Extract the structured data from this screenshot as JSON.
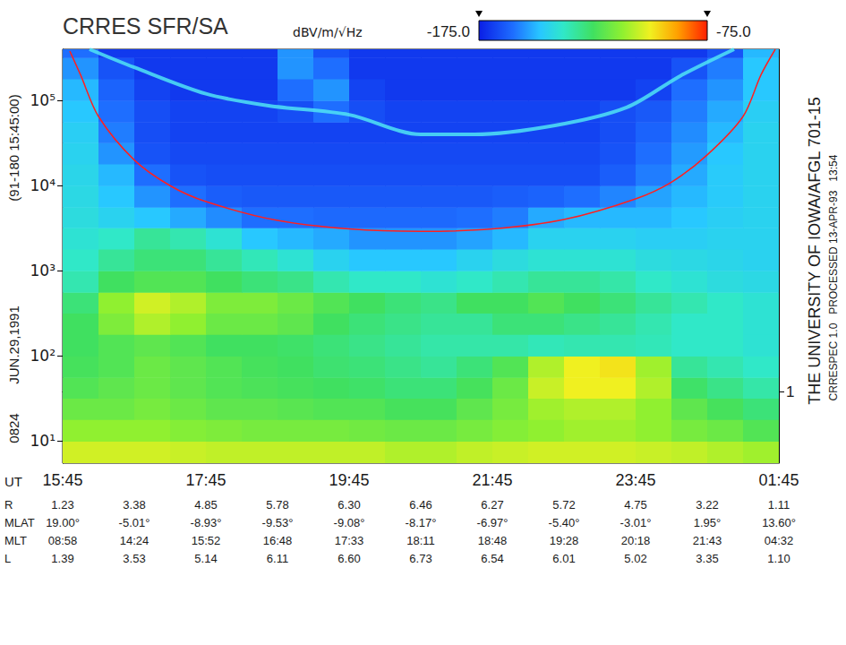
{
  "chart_data": {
    "type": "spectrogram",
    "title": "CRRES SFR/SA",
    "xlabel": "UT",
    "log": "y",
    "grid": false,
    "xlim": [
      15.75,
      25.75
    ],
    "xticks": [
      {
        "value": 15.75,
        "label": "15:45"
      },
      {
        "value": 17.75,
        "label": "17:45"
      },
      {
        "value": 19.75,
        "label": "19:45"
      },
      {
        "value": 21.75,
        "label": "21:45"
      },
      {
        "value": 23.75,
        "label": "23:45"
      },
      {
        "value": 25.75,
        "label": "01:45"
      }
    ],
    "ylim": [
      5.5,
      400000
    ],
    "yticks": [
      {
        "value": 10,
        "label": "10¹"
      },
      {
        "value": 100,
        "label": "10²"
      },
      {
        "value": 1000,
        "label": "10³"
      },
      {
        "value": 10000,
        "label": "10⁴"
      },
      {
        "value": 100000,
        "label": "10⁵"
      }
    ],
    "y2lim": [
      0.1,
      60000
    ],
    "y2ticks": [
      1
    ],
    "colorbar": {
      "range": [
        -175,
        -75
      ],
      "ticks": [
        {
          "value": -175,
          "label": "-175.0"
        },
        {
          "value": -75,
          "label": "-75.0"
        }
      ],
      "label": "dBV/m/√Hz"
    },
    "time_edges": [
      15.75,
      16.25,
      16.75,
      17.25,
      17.75,
      18.25,
      18.75,
      19.25,
      19.75,
      20.25,
      20.75,
      21.25,
      21.75,
      22.25,
      22.75,
      23.25,
      23.75,
      24.25,
      24.75,
      25.25,
      25.75
    ],
    "freq_edges": [
      5.5,
      10,
      18,
      32,
      56,
      100,
      180,
      320,
      560,
      1000,
      1800,
      3200,
      5600,
      10000,
      18000,
      32000,
      56000,
      100000,
      180000,
      320000,
      400000
    ],
    "cells": [
      [
        -104,
        -104,
        -104,
        -105,
        -106,
        -106,
        -106,
        -106,
        -106,
        -108,
        -108,
        -106,
        -105,
        -104,
        -104,
        -104,
        -105,
        -106,
        -108,
        -110
      ],
      [
        -112,
        -112,
        -112,
        -114,
        -115,
        -116,
        -116,
        -116,
        -117,
        -118,
        -118,
        -116,
        -114,
        -112,
        -110,
        -110,
        -112,
        -116,
        -118,
        -122
      ],
      [
        -118,
        -118,
        -116,
        -118,
        -120,
        -120,
        -121,
        -122,
        -122,
        -124,
        -124,
        -120,
        -116,
        -110,
        -108,
        -108,
        -112,
        -120,
        -124,
        -128
      ],
      [
        -122,
        -120,
        -118,
        -120,
        -122,
        -123,
        -124,
        -125,
        -126,
        -128,
        -128,
        -124,
        -118,
        -105,
        -100,
        -100,
        -108,
        -126,
        -130,
        -134
      ],
      [
        -124,
        -122,
        -118,
        -120,
        -122,
        -124,
        -125,
        -127,
        -128,
        -130,
        -132,
        -128,
        -122,
        -108,
        -100,
        -98,
        -110,
        -132,
        -135,
        -138
      ],
      [
        -125,
        -122,
        -120,
        -122,
        -125,
        -125,
        -126,
        -128,
        -130,
        -132,
        -134,
        -134,
        -134,
        -136,
        -135,
        -135,
        -136,
        -138,
        -138,
        -140
      ],
      [
        -125,
        -115,
        -108,
        -112,
        -118,
        -118,
        -120,
        -125,
        -128,
        -130,
        -132,
        -132,
        -128,
        -128,
        -130,
        -132,
        -135,
        -138,
        -138,
        -140
      ],
      [
        -128,
        -112,
        -104,
        -108,
        -115,
        -115,
        -118,
        -122,
        -125,
        -128,
        -130,
        -125,
        -125,
        -122,
        -125,
        -128,
        -132,
        -135,
        -138,
        -140
      ],
      [
        -135,
        -125,
        -122,
        -122,
        -125,
        -128,
        -130,
        -135,
        -138,
        -138,
        -140,
        -138,
        -135,
        -132,
        -132,
        -134,
        -138,
        -140,
        -142,
        -143
      ],
      [
        -138,
        -132,
        -128,
        -128,
        -132,
        -136,
        -140,
        -145,
        -148,
        -148,
        -148,
        -145,
        -142,
        -140,
        -140,
        -140,
        -142,
        -143,
        -144,
        -145
      ],
      [
        -140,
        -138,
        -132,
        -135,
        -140,
        -148,
        -150,
        -152,
        -155,
        -155,
        -155,
        -153,
        -150,
        -145,
        -145,
        -145,
        -146,
        -146,
        -145,
        -145
      ],
      [
        -142,
        -145,
        -148,
        -152,
        -156,
        -160,
        -160,
        -161,
        -161,
        -161,
        -161,
        -160,
        -158,
        -152,
        -150,
        -150,
        -150,
        -148,
        -146,
        -145
      ],
      [
        -143,
        -148,
        -155,
        -160,
        -163,
        -164,
        -164,
        -164,
        -164,
        -164,
        -164,
        -164,
        -163,
        -162,
        -160,
        -157,
        -153,
        -150,
        -147,
        -145
      ],
      [
        -144,
        -150,
        -160,
        -165,
        -166,
        -166,
        -166,
        -166,
        -166,
        -166,
        -166,
        -166,
        -166,
        -166,
        -166,
        -163,
        -158,
        -152,
        -147,
        -145
      ],
      [
        -145,
        -155,
        -165,
        -167,
        -167,
        -167,
        -167,
        -167,
        -167,
        -167,
        -167,
        -167,
        -167,
        -167,
        -167,
        -165,
        -160,
        -154,
        -148,
        -145
      ],
      [
        -146,
        -158,
        -166,
        -168,
        -168,
        -168,
        -168,
        -168,
        -168,
        -168,
        -168,
        -168,
        -168,
        -168,
        -168,
        -166,
        -162,
        -156,
        -150,
        -145
      ],
      [
        -148,
        -160,
        -166,
        -168,
        -168,
        -168,
        -166,
        -160,
        -166,
        -168,
        -168,
        -168,
        -168,
        -168,
        -168,
        -166,
        -164,
        -158,
        -152,
        -146
      ],
      [
        -150,
        -162,
        -168,
        -170,
        -170,
        -170,
        -160,
        -155,
        -168,
        -170,
        -170,
        -170,
        -170,
        -170,
        -170,
        -170,
        -168,
        -160,
        -155,
        -148
      ],
      [
        -155,
        -165,
        -170,
        -170,
        -170,
        -170,
        -155,
        -160,
        -170,
        -170,
        -170,
        -170,
        -170,
        -170,
        -170,
        -170,
        -170,
        -165,
        -158,
        -148
      ],
      [
        -160,
        -170,
        -170,
        -170,
        -170,
        -170,
        -155,
        -165,
        -170,
        -170,
        -170,
        -170,
        -170,
        -170,
        -170,
        -170,
        -170,
        -170,
        -165,
        -150
      ]
    ],
    "lines": [
      {
        "color": "#50e4f4",
        "line_style": "thick",
        "x": [
          16.125,
          16.75,
          17.75,
          18.625,
          19.75,
          20.75,
          21.5,
          22.625,
          23.625,
          24.375,
          25.125
        ],
        "values": [
          400000,
          245000,
          120000,
          87000,
          68000,
          40000,
          40000,
          51000,
          83000,
          195000,
          400000
        ]
      },
      {
        "color": "#ff2020",
        "line_style": "thin",
        "x": [
          15.85,
          16.0,
          16.25,
          16.75,
          17.25,
          17.75,
          18.75,
          19.75,
          20.75,
          21.75,
          22.75,
          23.75,
          24.25,
          24.75,
          25.25,
          25.5,
          25.7
        ],
        "values": [
          380000,
          200000,
          65000,
          20000,
          10000,
          6500,
          3900,
          3100,
          2900,
          3100,
          4000,
          7000,
          11000,
          23000,
          65000,
          200000,
          400000
        ]
      }
    ],
    "left_labels": [
      "0824",
      "JUN.29,1991",
      "(91-180 15:45:00)"
    ],
    "right_labels": [
      "THE UNIVERSITY OF IOWA/AFGL 701-15",
      "CRRESPEC 1.0   PROCESSED 13-APR-93   13:54"
    ],
    "ephemeris": {
      "x": [
        15.75,
        16.75,
        17.75,
        18.75,
        19.75,
        20.75,
        21.75,
        22.75,
        23.75,
        24.75,
        25.75
      ],
      "rows": [
        {
          "label": "R",
          "values": [
            "1.23",
            "3.38",
            "4.85",
            "5.78",
            "6.30",
            "6.46",
            "6.27",
            "5.72",
            "4.75",
            "3.22",
            "1.11"
          ]
        },
        {
          "label": "MLAT",
          "values": [
            "19.00°",
            "-5.01°",
            "-8.93°",
            "-9.53°",
            "-9.08°",
            "-8.17°",
            "-6.97°",
            "-5.40°",
            "-3.01°",
            "1.95°",
            "13.60°"
          ]
        },
        {
          "label": "MLT",
          "values": [
            "08:58",
            "14:24",
            "15:52",
            "16:48",
            "17:33",
            "18:11",
            "18:48",
            "19:28",
            "20:18",
            "21:43",
            "04:32"
          ]
        },
        {
          "label": "L",
          "values": [
            "1.39",
            "3.53",
            "5.14",
            "6.11",
            "6.60",
            "6.73",
            "6.54",
            "6.01",
            "5.02",
            "3.35",
            "1.10"
          ]
        }
      ]
    }
  }
}
